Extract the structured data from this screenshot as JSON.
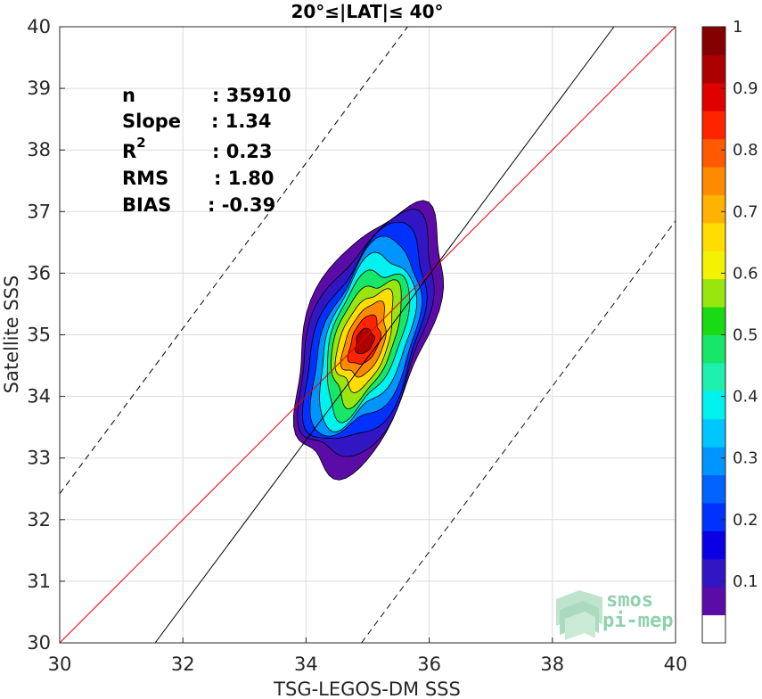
{
  "chart_data": {
    "type": "filled-contour",
    "title": "20°≤|LAT|≤ 40°",
    "xlabel": "TSG-LEGOS-DM SSS",
    "ylabel": "Satellite SSS",
    "xlim": [
      30,
      40
    ],
    "ylim": [
      30,
      40
    ],
    "xticks": [
      30,
      32,
      34,
      36,
      38,
      40
    ],
    "yticks": [
      30,
      31,
      32,
      33,
      34,
      35,
      36,
      37,
      38,
      39,
      40
    ],
    "grid": true,
    "stats": [
      {
        "label": "n",
        "value": ": 35910"
      },
      {
        "label": "Slope",
        "value": ": 1.34"
      },
      {
        "label": "R",
        "sup": "2",
        "value": ": 0.23"
      },
      {
        "label": "RMS",
        "value": ": 1.80"
      },
      {
        "label": "BIAS",
        "value": ": -0.39"
      }
    ],
    "lines": [
      {
        "name": "one-to-one",
        "color": "#e8000b",
        "dash": false,
        "x": [
          30,
          40
        ],
        "y": [
          30,
          40
        ]
      },
      {
        "name": "regression",
        "color": "#000000",
        "dash": false,
        "x": [
          31.55,
          39.0
        ],
        "y": [
          30,
          40
        ]
      },
      {
        "name": "upper-bound",
        "color": "#000000",
        "dash": true,
        "x": [
          30,
          35.65
        ],
        "y": [
          32.42,
          40
        ]
      },
      {
        "name": "lower-bound",
        "color": "#000000",
        "dash": true,
        "x": [
          34.9,
          40
        ],
        "y": [
          30,
          36.85
        ]
      }
    ],
    "density_peak": {
      "x": 34.95,
      "y": 34.9
    },
    "levels": [
      0.05,
      0.1,
      0.2,
      0.3,
      0.4,
      0.5,
      0.6,
      0.7,
      0.8,
      0.9,
      1.0
    ],
    "colorbar": {
      "min": 0,
      "max": 1,
      "ticks": [
        0.1,
        0.2,
        0.3,
        0.4,
        0.5,
        0.6,
        0.7,
        0.8,
        0.9,
        1
      ],
      "tick_labels": [
        "0.1",
        "0.2",
        "0.3",
        "0.4",
        "0.5",
        "0.6",
        "0.7",
        "0.8",
        "0.9",
        "1"
      ],
      "colors": [
        "#ffffff",
        "#5b0ba6",
        "#3216c4",
        "#0b00e4",
        "#0031ff",
        "#0062ff",
        "#0094ff",
        "#00c6ff",
        "#00f2ef",
        "#1ff0ae",
        "#17e669",
        "#19da14",
        "#99e50f",
        "#f4f200",
        "#ffdd00",
        "#ffb200",
        "#ff8a00",
        "#ff5a00",
        "#ff2400",
        "#e10000",
        "#ad0000",
        "#850000"
      ]
    }
  },
  "logo": {
    "line1": "smos",
    "line2": "pi-mep"
  }
}
